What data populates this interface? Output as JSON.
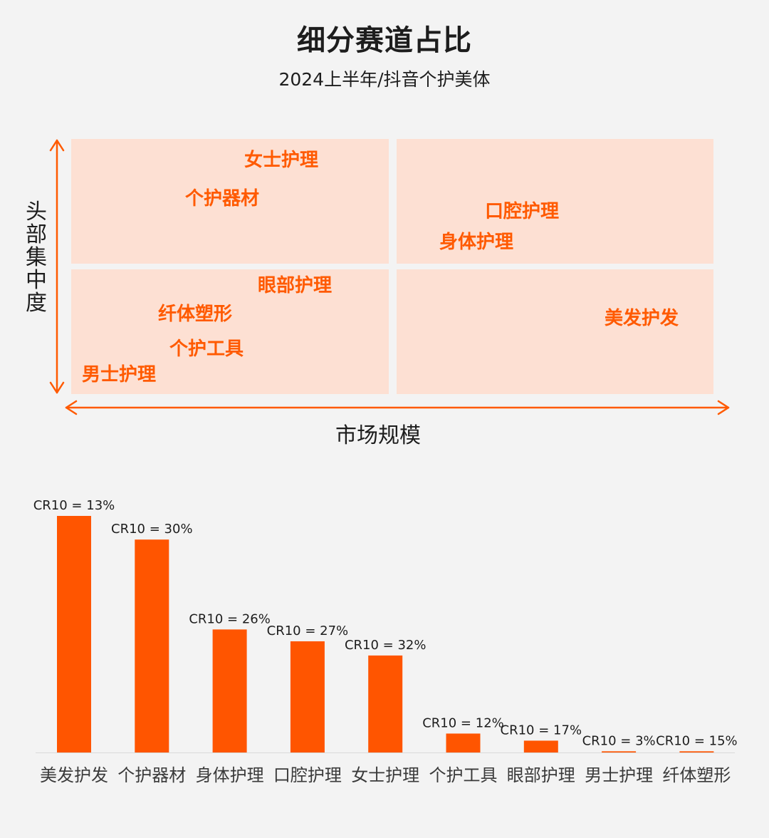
{
  "header": {
    "title": "细分赛道占比",
    "subtitle": "2024上半年/抖音个护美体"
  },
  "matrix": {
    "y_axis_label": "头部集中度",
    "x_axis_label": "市场规模",
    "quadrants": {
      "top_left": [
        "女士护理",
        "个护器材"
      ],
      "top_right": [
        "口腔护理",
        "身体护理"
      ],
      "bottom_left": [
        "眼部护理",
        "纤体塑形",
        "个护工具",
        "男士护理"
      ],
      "bottom_right": [
        "美发护发"
      ]
    },
    "colors": {
      "quadrant_fill": "#fde0d3",
      "label": "#ff5a00",
      "axis": "#ff5a00"
    }
  },
  "chart_data": {
    "type": "bar",
    "categories": [
      "美发护发",
      "个护器材",
      "身体护理",
      "口腔护理",
      "女士护理",
      "个护工具",
      "眼部护理",
      "男士护理",
      "纤体塑形"
    ],
    "values": [
      100,
      90,
      52,
      47,
      41,
      8,
      5,
      0.5,
      0.5
    ],
    "data_labels": [
      "CR10 = 13%",
      "CR10 = 30%",
      "CR10 = 26%",
      "CR10 = 27%",
      "CR10 = 32%",
      "CR10 = 12%",
      "CR10 = 17%",
      "CR10 = 3%",
      "CR10 = 15%"
    ],
    "ylim": [
      0,
      100
    ],
    "grid": false,
    "y_axis_shown": false,
    "bar_color": "#ff5500"
  }
}
